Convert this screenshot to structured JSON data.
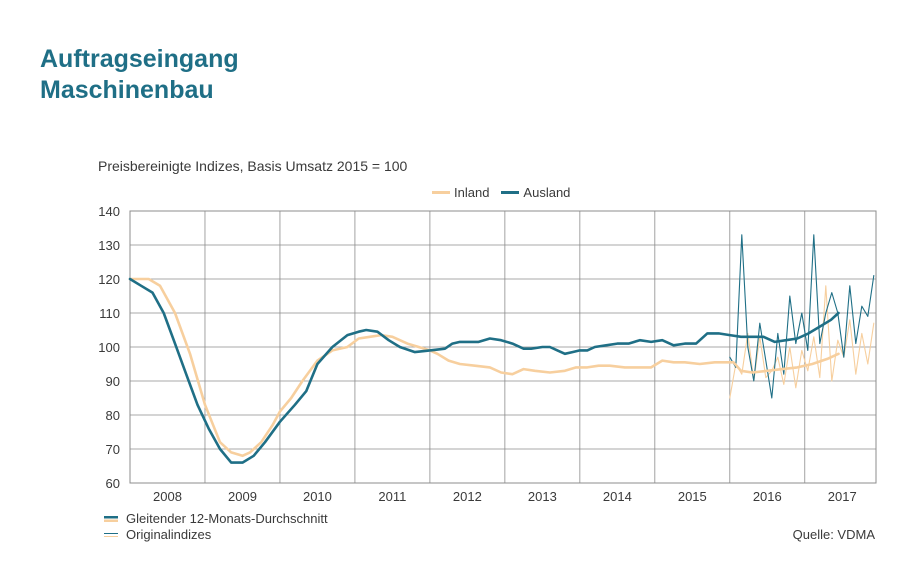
{
  "header": {
    "title_line1": "Auftragseingang",
    "title_line2": "Maschinenbau"
  },
  "subtitle": "Preisbereinigte Indizes, Basis Umsatz 2015 = 100",
  "notes": {
    "smooth": "Gleitender 12-Monats-Durchschnitt",
    "original": "Originalindizes"
  },
  "source": "Quelle: VDMA",
  "colors": {
    "inland": "#f7cf9e",
    "ausland": "#1f6f86",
    "grid": "#8c8c8c"
  },
  "chart_data": {
    "type": "line",
    "ylim": [
      60,
      140
    ],
    "yticks": [
      60,
      70,
      80,
      90,
      100,
      110,
      120,
      130,
      140
    ],
    "xlim": [
      2007.5,
      2017.45
    ],
    "year_labels": [
      "2008",
      "2009",
      "2010",
      "2011",
      "2012",
      "2013",
      "2014",
      "2015",
      "2016",
      "2017"
    ],
    "grid": true,
    "legend_position": "top-center",
    "series": [
      {
        "name": "Inland",
        "kind": "moving-average",
        "x": [
          2007.5,
          2007.6,
          2007.75,
          2007.9,
          2008.1,
          2008.3,
          2008.5,
          2008.7,
          2008.85,
          2009.0,
          2009.1,
          2009.25,
          2009.4,
          2009.5,
          2009.65,
          2009.8,
          2010.0,
          2010.2,
          2010.4,
          2010.55,
          2010.7,
          2010.85,
          2011.0,
          2011.2,
          2011.35,
          2011.5,
          2011.6,
          2011.75,
          2011.9,
          2012.1,
          2012.3,
          2012.45,
          2012.6,
          2012.75,
          2012.9,
          2013.1,
          2013.3,
          2013.45,
          2013.6,
          2013.75,
          2013.9,
          2014.1,
          2014.3,
          2014.45,
          2014.6,
          2014.75,
          2014.9,
          2015.1,
          2015.3,
          2015.45,
          2015.55,
          2015.65,
          2015.8,
          2016.0,
          2016.2,
          2016.4,
          2016.6,
          2016.8,
          2016.95
        ],
        "values": [
          120,
          120,
          120,
          118,
          110,
          98,
          83,
          72,
          69,
          68,
          69,
          72,
          77,
          81,
          85,
          90,
          96,
          99,
          100,
          102.5,
          103,
          103.5,
          103,
          101,
          100,
          99,
          98,
          96,
          95,
          94.5,
          94,
          92.5,
          92,
          93.5,
          93,
          92.5,
          93,
          94,
          94,
          94.5,
          94.5,
          94,
          94,
          94,
          96,
          95.5,
          95.5,
          95,
          95.5,
          95.5,
          95.5,
          93,
          92.5,
          93,
          93.5,
          94,
          95,
          96.5,
          98
        ]
      },
      {
        "name": "Ausland",
        "kind": "moving-average",
        "x": [
          2007.5,
          2007.65,
          2007.8,
          2007.95,
          2008.1,
          2008.25,
          2008.4,
          2008.55,
          2008.7,
          2008.85,
          2009.0,
          2009.15,
          2009.3,
          2009.5,
          2009.7,
          2009.85,
          2010.0,
          2010.2,
          2010.4,
          2010.55,
          2010.65,
          2010.8,
          2010.95,
          2011.1,
          2011.3,
          2011.5,
          2011.7,
          2011.8,
          2011.9,
          2012.0,
          2012.15,
          2012.3,
          2012.45,
          2012.6,
          2012.75,
          2012.85,
          2013.0,
          2013.1,
          2013.2,
          2013.3,
          2013.4,
          2013.5,
          2013.6,
          2013.7,
          2013.85,
          2014.0,
          2014.15,
          2014.3,
          2014.45,
          2014.6,
          2014.75,
          2014.9,
          2015.05,
          2015.2,
          2015.35,
          2015.5,
          2015.65,
          2015.8,
          2015.95,
          2016.1,
          2016.25,
          2016.4,
          2016.55,
          2016.7,
          2016.85,
          2016.95
        ],
        "values": [
          120,
          118,
          116,
          110,
          101,
          92,
          83,
          76,
          70,
          66,
          66,
          68,
          72,
          78,
          83,
          87,
          95,
          100,
          103.5,
          104.5,
          105,
          104.5,
          102,
          100,
          98.5,
          99,
          99.5,
          101,
          101.5,
          101.5,
          101.5,
          102.5,
          102,
          101,
          99.5,
          99.5,
          100,
          100,
          99,
          98,
          98.5,
          99,
          99,
          100,
          100.5,
          101,
          101,
          102,
          101.5,
          102,
          100.5,
          101,
          101,
          104,
          104,
          103.5,
          103,
          103,
          103,
          101.5,
          102,
          102.5,
          104,
          106,
          108,
          110
        ]
      },
      {
        "name": "Inland",
        "kind": "original",
        "x": [
          2015.5,
          2015.58,
          2015.66,
          2015.74,
          2015.82,
          2015.9,
          2015.98,
          2016.06,
          2016.14,
          2016.22,
          2016.3,
          2016.38,
          2016.46,
          2016.54,
          2016.62,
          2016.7,
          2016.78,
          2016.86,
          2016.94,
          2017.02,
          2017.1,
          2017.18,
          2017.26,
          2017.34,
          2017.42
        ],
        "values": [
          85,
          95,
          92,
          104,
          90,
          103,
          91,
          93,
          97,
          89,
          100,
          88,
          99,
          93,
          103,
          91,
          118,
          90,
          102,
          97,
          108,
          92,
          104,
          95,
          107
        ]
      },
      {
        "name": "Ausland",
        "kind": "original",
        "x": [
          2015.5,
          2015.58,
          2015.66,
          2015.74,
          2015.82,
          2015.9,
          2015.98,
          2016.06,
          2016.14,
          2016.22,
          2016.3,
          2016.38,
          2016.46,
          2016.54,
          2016.62,
          2016.7,
          2016.78,
          2016.86,
          2016.94,
          2017.02,
          2017.1,
          2017.18,
          2017.26,
          2017.34,
          2017.42
        ],
        "values": [
          97,
          94,
          133,
          100,
          90,
          107,
          96,
          85,
          104,
          92,
          115,
          101,
          110,
          99,
          133,
          101,
          110,
          116,
          110,
          97,
          118,
          101,
          112,
          109,
          121
        ]
      }
    ]
  }
}
